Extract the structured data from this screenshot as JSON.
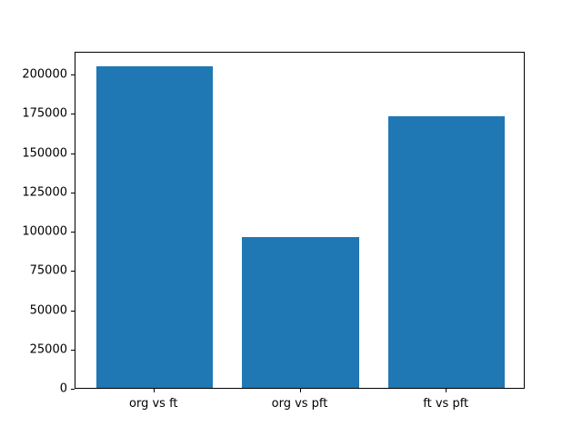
{
  "chart_data": {
    "type": "bar",
    "categories": [
      "org vs ft",
      "org vs pft",
      "ft vs pft"
    ],
    "values": [
      204600,
      95900,
      173200
    ],
    "title": "",
    "xlabel": "",
    "ylabel": "",
    "yticks": [
      0,
      25000,
      50000,
      75000,
      100000,
      125000,
      150000,
      175000,
      200000
    ],
    "ylim": [
      0,
      214600
    ],
    "xlim": [
      -0.54,
      2.54
    ],
    "bar_width": 0.8,
    "bar_color": "#1f77b4",
    "grid": false,
    "legend": null,
    "background_color": "#ffffff",
    "spine_color": "#000000"
  }
}
